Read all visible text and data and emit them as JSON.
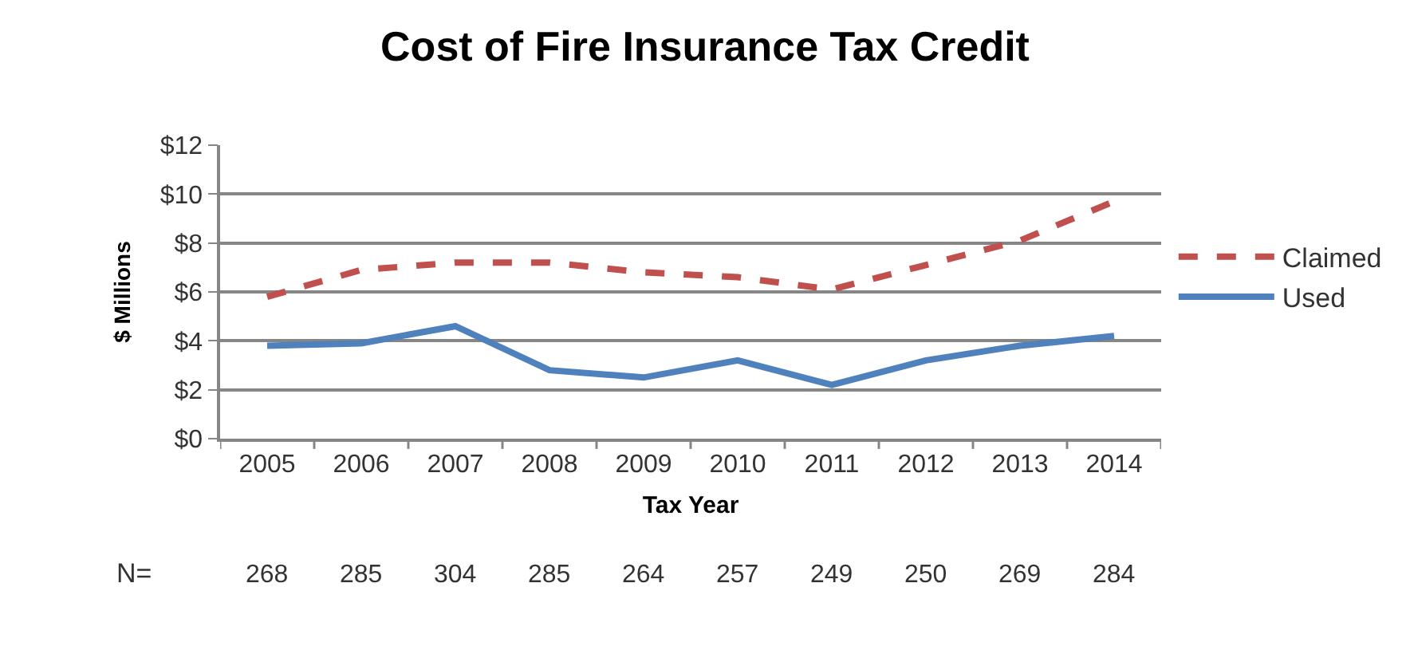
{
  "chart_data": {
    "type": "line",
    "title": "Cost of Fire Insurance Tax Credit",
    "xlabel": "Tax Year",
    "ylabel": "$ Millions",
    "categories": [
      "2005",
      "2006",
      "2007",
      "2008",
      "2009",
      "2010",
      "2011",
      "2012",
      "2013",
      "2014"
    ],
    "series": [
      {
        "name": "Claimed",
        "color": "#c0504d",
        "line_style": "dashed",
        "values": [
          5.8,
          6.9,
          7.2,
          7.2,
          6.8,
          6.6,
          6.1,
          7.1,
          8.1,
          9.7
        ]
      },
      {
        "name": "Used",
        "color": "#4f81bd",
        "line_style": "solid",
        "values": [
          3.8,
          3.9,
          4.6,
          2.8,
          2.5,
          3.2,
          2.2,
          3.2,
          3.8,
          4.2
        ]
      }
    ],
    "ylim": [
      0,
      12
    ],
    "yticks": [
      {
        "value": 0,
        "label": "$0"
      },
      {
        "value": 2,
        "label": "$2"
      },
      {
        "value": 4,
        "label": "$4"
      },
      {
        "value": 6,
        "label": "$6"
      },
      {
        "value": 8,
        "label": "$8"
      },
      {
        "value": 10,
        "label": "$10"
      },
      {
        "value": 12,
        "label": "$12"
      }
    ],
    "grid": "y",
    "legend": "right",
    "marker": "none",
    "annotations": [
      "N=",
      "268",
      "285",
      "304",
      "285",
      "264",
      "257",
      "249",
      "250",
      "269",
      "284"
    ]
  }
}
